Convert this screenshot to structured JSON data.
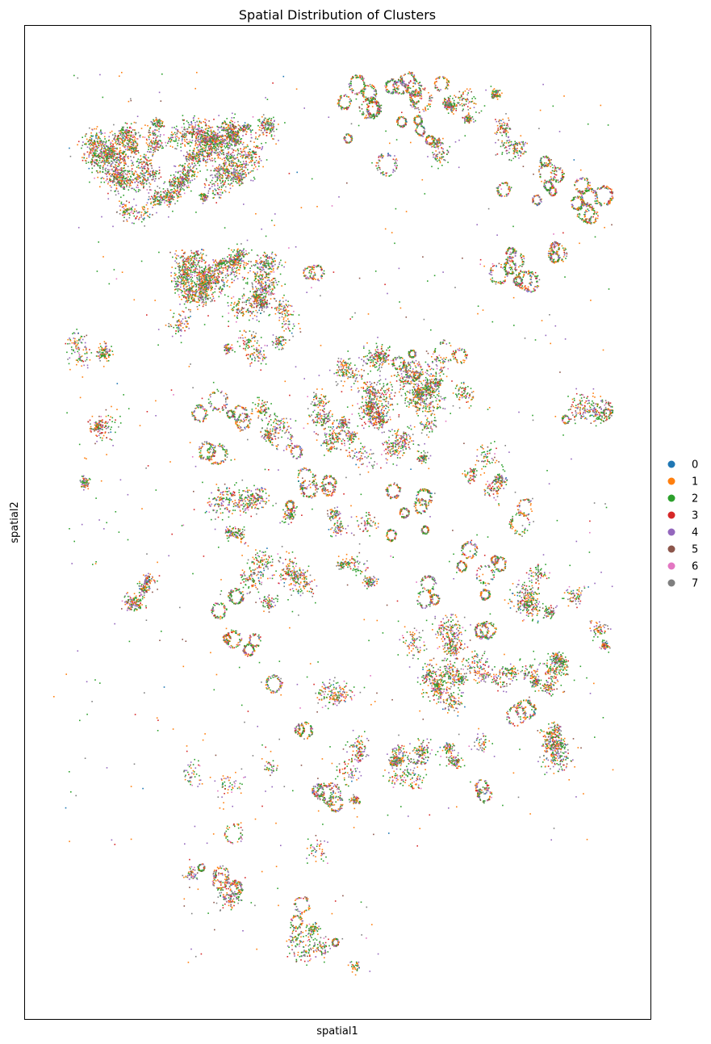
{
  "chart_data": {
    "type": "scatter",
    "title": "Spatial Distribution of Clusters",
    "xlabel": "spatial1",
    "ylabel": "spatial2",
    "x_ticks_visible": false,
    "y_ticks_visible": false,
    "grid": false,
    "legend_placement": "right",
    "legend": [
      {
        "label": "0",
        "color": "#1f77b4"
      },
      {
        "label": "1",
        "color": "#ff7f0e"
      },
      {
        "label": "2",
        "color": "#2ca02c"
      },
      {
        "label": "3",
        "color": "#d62728"
      },
      {
        "label": "4",
        "color": "#9467bd"
      },
      {
        "label": "5",
        "color": "#8c564b"
      },
      {
        "label": "6",
        "color": "#e377c2"
      },
      {
        "label": "7",
        "color": "#7f7f7f"
      }
    ]
  }
}
